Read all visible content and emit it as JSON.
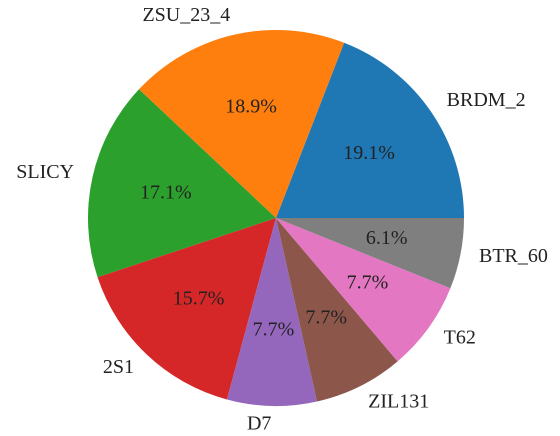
{
  "chart_data": {
    "type": "pie",
    "categories": [
      "BRDM_2",
      "ZSU_23_4",
      "SLICY",
      "2S1",
      "D7",
      "ZIL131",
      "T62",
      "BTR_60"
    ],
    "values": [
      19.1,
      18.9,
      17.1,
      15.7,
      7.7,
      7.7,
      7.7,
      6.1
    ],
    "value_labels": [
      "19.1%",
      "18.9%",
      "17.1%",
      "15.7%",
      "7.7%",
      "7.7%",
      "7.7%",
      "6.1%"
    ],
    "colors": [
      "#1f77b4",
      "#ff7f0e",
      "#2ca02c",
      "#d62728",
      "#9467bd",
      "#8c564b",
      "#e377c2",
      "#7f7f7f"
    ],
    "start_angle": 0,
    "counterclockwise": true
  }
}
